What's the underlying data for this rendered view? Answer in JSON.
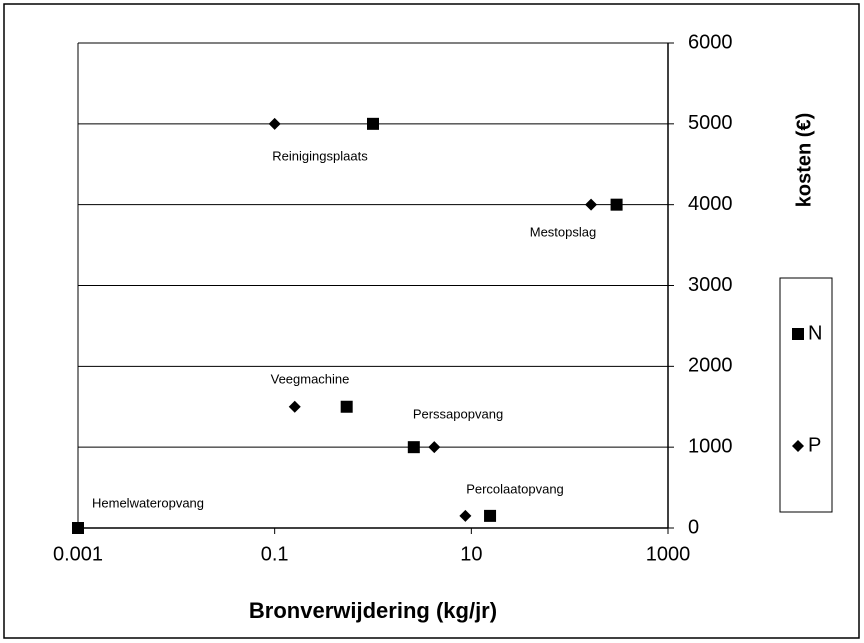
{
  "chart_data": {
    "type": "scatter",
    "x_label": "Bronverwijdering (kg/jr)",
    "y_label": "kosten (€)",
    "xscale": "log",
    "xlim": [
      0.001,
      1000
    ],
    "xticks": [
      0.001,
      0.1,
      10,
      1000
    ],
    "ylim": [
      0,
      6000
    ],
    "yticks": [
      0,
      1000,
      2000,
      3000,
      4000,
      5000,
      6000
    ],
    "grid": true,
    "legend": "right",
    "annotations": [
      "Reinigingsplaats",
      "Mestopslag",
      "Veegmachine",
      "Perssapopvang",
      "Percolaatopvang",
      "Hemelwateropvang"
    ],
    "series": [
      {
        "name": "N",
        "color": "#000000",
        "marker": "square",
        "x": [
          1.0,
          300,
          0.54,
          2.6,
          15.5,
          0.001
        ],
        "values": [
          5000,
          4000,
          1500,
          1000,
          150,
          0
        ]
      },
      {
        "name": "P",
        "color": "#000000",
        "marker": "diamond",
        "x": [
          0.1,
          165,
          0.16,
          4.2,
          8.7,
          0.001
        ],
        "values": [
          5000,
          4000,
          1500,
          1000,
          150,
          0
        ]
      }
    ]
  }
}
